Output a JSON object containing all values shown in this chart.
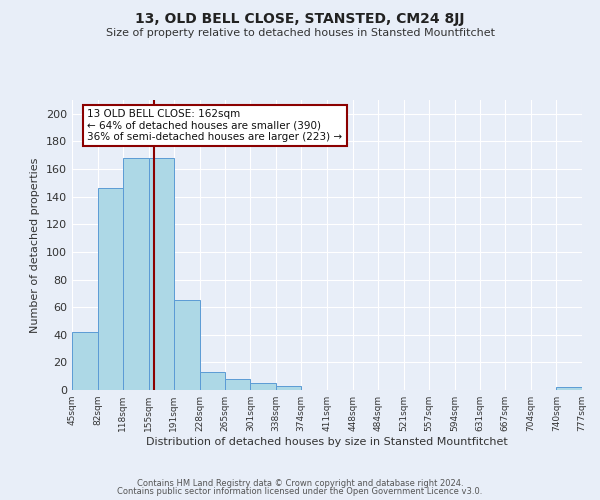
{
  "title": "13, OLD BELL CLOSE, STANSTED, CM24 8JJ",
  "subtitle": "Size of property relative to detached houses in Stansted Mountfitchet",
  "xlabel": "Distribution of detached houses by size in Stansted Mountfitchet",
  "ylabel": "Number of detached properties",
  "footer_line1": "Contains HM Land Registry data © Crown copyright and database right 2024.",
  "footer_line2": "Contains public sector information licensed under the Open Government Licence v3.0.",
  "annotation_line1": "13 OLD BELL CLOSE: 162sqm",
  "annotation_line2": "← 64% of detached houses are smaller (390)",
  "annotation_line3": "36% of semi-detached houses are larger (223) →",
  "bar_edges": [
    45,
    82,
    118,
    155,
    191,
    228,
    265,
    301,
    338,
    374,
    411,
    448,
    484,
    521,
    557,
    594,
    631,
    667,
    704,
    740,
    777
  ],
  "bar_heights": [
    42,
    146,
    168,
    168,
    65,
    13,
    8,
    5,
    3,
    0,
    0,
    0,
    0,
    0,
    0,
    0,
    0,
    0,
    0,
    2
  ],
  "bar_color": "#add8e6",
  "bar_edge_color": "#5b9bd5",
  "property_line_x": 162,
  "property_line_color": "#8b0000",
  "annotation_box_edge_color": "#8b0000",
  "ylim": [
    0,
    210
  ],
  "xlim": [
    45,
    777
  ],
  "tick_labels": [
    "45sqm",
    "82sqm",
    "118sqm",
    "155sqm",
    "191sqm",
    "228sqm",
    "265sqm",
    "301sqm",
    "338sqm",
    "374sqm",
    "411sqm",
    "448sqm",
    "484sqm",
    "521sqm",
    "557sqm",
    "594sqm",
    "631sqm",
    "667sqm",
    "704sqm",
    "740sqm",
    "777sqm"
  ],
  "tick_positions": [
    45,
    82,
    118,
    155,
    191,
    228,
    265,
    301,
    338,
    374,
    411,
    448,
    484,
    521,
    557,
    594,
    631,
    667,
    704,
    740,
    777
  ],
  "background_color": "#e8eef8",
  "plot_bg_color": "#e8eef8",
  "grid_color": "#ffffff",
  "title_fontsize": 10,
  "subtitle_fontsize": 8.5
}
